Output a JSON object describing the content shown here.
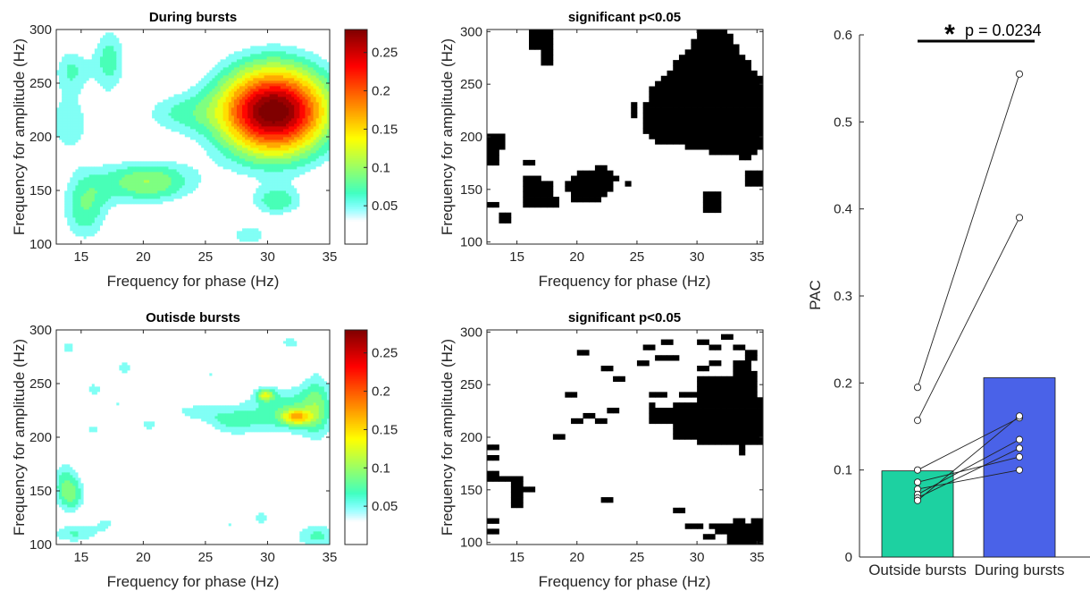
{
  "chart_data": [
    {
      "type": "heatmap",
      "panel": "top-left",
      "title": "During bursts",
      "xlabel": "Frequency for phase (Hz)",
      "ylabel": "Frequency for amplitude (Hz)",
      "xlim": [
        13,
        35
      ],
      "ylim": [
        100,
        300
      ],
      "xticks": [
        15,
        20,
        25,
        30,
        35
      ],
      "yticks": [
        100,
        150,
        200,
        250,
        300
      ],
      "colorbar": {
        "range": [
          0,
          0.28
        ],
        "ticks": [
          0.05,
          0.1,
          0.15,
          0.2,
          0.25
        ],
        "tick_labels": [
          "0.05",
          "0.1",
          "0.15",
          "0.2",
          "0.25"
        ],
        "colormap": "jet-white-low"
      },
      "blobs": [
        {
          "x": 30.5,
          "y": 224,
          "sx": 3.3,
          "sy": 32,
          "peak": 0.27
        },
        {
          "x": 30.5,
          "y": 224,
          "sx": 2.6,
          "sy": 15,
          "peak": 0.03
        },
        {
          "x": 20.3,
          "y": 158,
          "sx": 2.9,
          "sy": 15,
          "peak": 0.1
        },
        {
          "x": 15.3,
          "y": 133,
          "sx": 1.4,
          "sy": 24,
          "peak": 0.075
        },
        {
          "x": 17.3,
          "y": 272,
          "sx": 1.0,
          "sy": 25,
          "peak": 0.07
        },
        {
          "x": 14.2,
          "y": 263,
          "sx": 1.1,
          "sy": 16,
          "peak": 0.06
        },
        {
          "x": 30.8,
          "y": 140,
          "sx": 1.5,
          "sy": 10,
          "peak": 0.07
        },
        {
          "x": 14.0,
          "y": 212,
          "sx": 1.5,
          "sy": 22,
          "peak": 0.055
        },
        {
          "x": 22.5,
          "y": 222,
          "sx": 2.2,
          "sy": 15,
          "peak": 0.05
        },
        {
          "x": 28.5,
          "y": 108,
          "sx": 1.5,
          "sy": 10,
          "peak": 0.05
        }
      ]
    },
    {
      "type": "heatmap",
      "panel": "top-middle",
      "title": "significant p<0.05",
      "xlabel": "Frequency for phase (Hz)",
      "ylabel": "Frequency for amplitude (Hz)",
      "xlim": [
        12.5,
        35.5
      ],
      "ylim": [
        98,
        302
      ],
      "xticks": [
        15,
        20,
        25,
        30,
        35
      ],
      "yticks": [
        100,
        150,
        200,
        250,
        300
      ],
      "binary_mask": {
        "x_start": 13,
        "x_step": 0.5,
        "y_start": 100,
        "y_step": 5,
        "polygons": [
          [
            [
              25.4,
              225
            ],
            [
              26.3,
              250
            ],
            [
              28,
              268
            ],
            [
              29.5,
              286
            ],
            [
              30.2,
              302
            ],
            [
              32.6,
              302
            ],
            [
              33.6,
              280
            ],
            [
              35,
              262
            ],
            [
              35.5,
              255
            ],
            [
              35.5,
              188
            ],
            [
              34.5,
              182
            ],
            [
              33.3,
              182
            ],
            [
              31.5,
              184
            ],
            [
              30,
              188
            ],
            [
              28.6,
              192
            ],
            [
              27,
              195
            ],
            [
              26,
              196
            ],
            [
              25.5,
              208
            ]
          ],
          [
            [
              19.3,
              140
            ],
            [
              19.2,
              158
            ],
            [
              20.4,
              170
            ],
            [
              22.5,
              171
            ],
            [
              23.4,
              160
            ],
            [
              23,
              148
            ],
            [
              22,
              140
            ],
            [
              20.4,
              135
            ]
          ]
        ],
        "rects": [
          [
            16,
            18.2,
            282,
            302
          ],
          [
            17.1,
            18.2,
            266,
            284
          ],
          [
            12.5,
            14.1,
            188,
            202
          ],
          [
            12.5,
            13.3,
            172,
            190
          ],
          [
            15.6,
            16.5,
            172,
            177
          ],
          [
            15.6,
            17.1,
            136,
            165
          ],
          [
            16.7,
            17.8,
            142,
            157
          ],
          [
            15.6,
            18.4,
            132,
            142
          ],
          [
            12.5,
            13.5,
            133,
            138
          ],
          [
            13.7,
            14.5,
            117,
            126
          ],
          [
            23.8,
            24.4,
            152,
            158
          ],
          [
            24.4,
            25.2,
            220,
            235
          ],
          [
            30.3,
            32,
            130,
            148
          ],
          [
            33.3,
            34.4,
            176,
            184
          ],
          [
            34.2,
            35.5,
            155,
            168
          ]
        ]
      }
    },
    {
      "type": "heatmap",
      "panel": "bottom-left",
      "title": "Outisde bursts",
      "xlabel": "Frequency for phase (Hz)",
      "ylabel": "Frequency for amplitude (Hz)",
      "xlim": [
        13,
        35
      ],
      "ylim": [
        100,
        300
      ],
      "xticks": [
        15,
        20,
        25,
        30,
        35
      ],
      "yticks": [
        100,
        150,
        200,
        250,
        300
      ],
      "colorbar": {
        "range": [
          0,
          0.28
        ],
        "ticks": [
          0.05,
          0.1,
          0.15,
          0.2,
          0.25
        ],
        "tick_labels": [
          "0.05",
          "0.1",
          "0.15",
          "0.2",
          "0.25"
        ],
        "colormap": "jet-white-low"
      },
      "blobs": [
        {
          "x": 32.3,
          "y": 219,
          "sx": 0.8,
          "sy": 5,
          "peak": 0.1
        },
        {
          "x": 29.8,
          "y": 240,
          "sx": 0.5,
          "sy": 4,
          "peak": 0.09
        },
        {
          "x": 31.5,
          "y": 225,
          "sx": 2.8,
          "sy": 18,
          "peak": 0.075
        },
        {
          "x": 34.0,
          "y": 232,
          "sx": 0.9,
          "sy": 28,
          "peak": 0.05
        },
        {
          "x": 14.2,
          "y": 145,
          "sx": 0.9,
          "sy": 13,
          "peak": 0.065
        },
        {
          "x": 13.7,
          "y": 162,
          "sx": 0.9,
          "sy": 16,
          "peak": 0.05
        },
        {
          "x": 14.5,
          "y": 110,
          "sx": 1.6,
          "sy": 7,
          "peak": 0.06
        },
        {
          "x": 34.0,
          "y": 108,
          "sx": 1.5,
          "sy": 10,
          "peak": 0.065
        },
        {
          "x": 27.0,
          "y": 214,
          "sx": 1.5,
          "sy": 10,
          "peak": 0.05
        },
        {
          "x": 24.0,
          "y": 224,
          "sx": 1.6,
          "sy": 7,
          "peak": 0.045
        },
        {
          "x": 16.0,
          "y": 245,
          "sx": 0.9,
          "sy": 8,
          "peak": 0.045
        },
        {
          "x": 18.5,
          "y": 265,
          "sx": 0.9,
          "sy": 8,
          "peak": 0.045
        },
        {
          "x": 14.0,
          "y": 283,
          "sx": 0.9,
          "sy": 8,
          "peak": 0.045
        },
        {
          "x": 20.5,
          "y": 212,
          "sx": 0.9,
          "sy": 7,
          "peak": 0.045
        },
        {
          "x": 16.0,
          "y": 208,
          "sx": 0.8,
          "sy": 6,
          "peak": 0.045
        },
        {
          "x": 26.0,
          "y": 168,
          "sx": 0.9,
          "sy": 8,
          "peak": 0.04
        },
        {
          "x": 22.0,
          "y": 140,
          "sx": 0.9,
          "sy": 8,
          "peak": 0.04
        },
        {
          "x": 29.5,
          "y": 125,
          "sx": 0.9,
          "sy": 9,
          "peak": 0.045
        },
        {
          "x": 31.8,
          "y": 288,
          "sx": 0.9,
          "sy": 8,
          "peak": 0.045
        },
        {
          "x": 22.0,
          "y": 278,
          "sx": 0.9,
          "sy": 6,
          "peak": 0.04
        },
        {
          "x": 18.0,
          "y": 232,
          "sx": 0.9,
          "sy": 6,
          "peak": 0.04
        },
        {
          "x": 25.5,
          "y": 260,
          "sx": 0.8,
          "sy": 6,
          "peak": 0.04
        },
        {
          "x": 27.0,
          "y": 118,
          "sx": 0.8,
          "sy": 6,
          "peak": 0.04
        },
        {
          "x": 20.0,
          "y": 180,
          "sx": 0.8,
          "sy": 6,
          "peak": 0.035
        },
        {
          "x": 17.0,
          "y": 120,
          "sx": 0.8,
          "sy": 6,
          "peak": 0.04
        }
      ]
    },
    {
      "type": "heatmap",
      "panel": "bottom-middle",
      "title": "significant p<0.05",
      "xlabel": "Frequency for phase (Hz)",
      "ylabel": "Frequency for amplitude (Hz)",
      "xlim": [
        12.5,
        35.5
      ],
      "ylim": [
        98,
        302
      ],
      "xticks": [
        15,
        20,
        25,
        30,
        35
      ],
      "yticks": [
        100,
        150,
        200,
        250,
        300
      ],
      "binary_mask": {
        "x_start": 13,
        "x_step": 0.5,
        "y_start": 100,
        "y_step": 5,
        "polygons": [],
        "rects": [
          [
            30,
            35.5,
            192,
            237
          ],
          [
            28,
            30,
            198,
            232
          ],
          [
            26,
            28,
            215,
            228
          ],
          [
            33,
            35,
            238,
            262
          ],
          [
            30,
            33.5,
            237,
            258
          ],
          [
            28.5,
            30,
            237,
            245
          ],
          [
            33,
            34.5,
            262,
            275
          ],
          [
            34,
            35,
            275,
            285
          ],
          [
            33.5,
            34.2,
            182,
            192
          ],
          [
            30,
            31,
            290,
            295
          ],
          [
            32,
            33,
            292,
            297
          ],
          [
            31,
            32,
            282,
            287
          ],
          [
            33,
            34,
            285,
            290
          ],
          [
            30,
            31,
            265,
            270
          ],
          [
            31,
            32,
            270,
            275
          ],
          [
            27,
            28,
            288,
            293
          ],
          [
            25.5,
            26.5,
            282,
            287
          ],
          [
            26.3,
            27.3,
            275,
            280
          ],
          [
            27.5,
            28.5,
            272,
            277
          ],
          [
            25,
            26,
            268,
            273
          ],
          [
            23,
            24,
            255,
            260
          ],
          [
            22,
            23,
            262,
            267
          ],
          [
            20,
            21,
            278,
            283
          ],
          [
            19,
            20,
            237,
            242
          ],
          [
            19.5,
            20.5,
            215,
            220
          ],
          [
            20.5,
            21.5,
            220,
            225
          ],
          [
            21.5,
            22.5,
            215,
            220
          ],
          [
            22.5,
            23.5,
            222,
            227
          ],
          [
            18,
            19,
            200,
            205
          ],
          [
            26,
            27.5,
            240,
            245
          ],
          [
            25.8,
            26.5,
            228,
            232
          ],
          [
            12.5,
            13.3,
            190,
            195
          ],
          [
            12.5,
            13.3,
            178,
            183
          ],
          [
            12.5,
            13.3,
            165,
            170
          ],
          [
            12.5,
            15.5,
            158,
            163
          ],
          [
            14.5,
            15.5,
            133,
            158
          ],
          [
            15.5,
            16.3,
            147,
            152
          ],
          [
            12.5,
            13.3,
            117,
            122
          ],
          [
            12.5,
            13.3,
            106,
            111
          ],
          [
            22,
            23,
            138,
            143
          ],
          [
            28,
            29,
            128,
            133
          ],
          [
            29,
            30.5,
            112,
            117
          ],
          [
            30.3,
            31.5,
            102,
            107
          ],
          [
            31.5,
            32.5,
            107,
            112
          ],
          [
            31,
            32.5,
            114,
            119
          ],
          [
            33,
            34,
            120,
            125
          ],
          [
            32.5,
            35.5,
            98,
            116
          ],
          [
            34.5,
            35.5,
            116,
            121
          ],
          [
            33.5,
            34.5,
            102,
            106
          ]
        ]
      }
    },
    {
      "type": "bar",
      "panel": "right",
      "categories": [
        "Outside bursts",
        "During bursts"
      ],
      "values": [
        0.099,
        0.206
      ],
      "bar_colors": [
        "#1dd1a1",
        "#4a62e8"
      ],
      "ylabel": "PAC",
      "ylim": [
        0,
        0.6
      ],
      "yticks": [
        0,
        0.1,
        0.2,
        0.3,
        0.4,
        0.5,
        0.6
      ],
      "ytick_labels": [
        "0",
        "0.1",
        "0.2",
        "0.3",
        "0.4",
        "0.5",
        "0.6"
      ],
      "paired_points": {
        "outside": [
          0.195,
          0.157,
          0.1,
          0.086,
          0.078,
          0.072,
          0.068,
          0.065
        ],
        "during": [
          0.555,
          0.39,
          0.16,
          0.115,
          0.1,
          0.135,
          0.125,
          0.162
        ]
      },
      "significance": {
        "star": "*",
        "text": "p = 0.0234"
      }
    }
  ]
}
